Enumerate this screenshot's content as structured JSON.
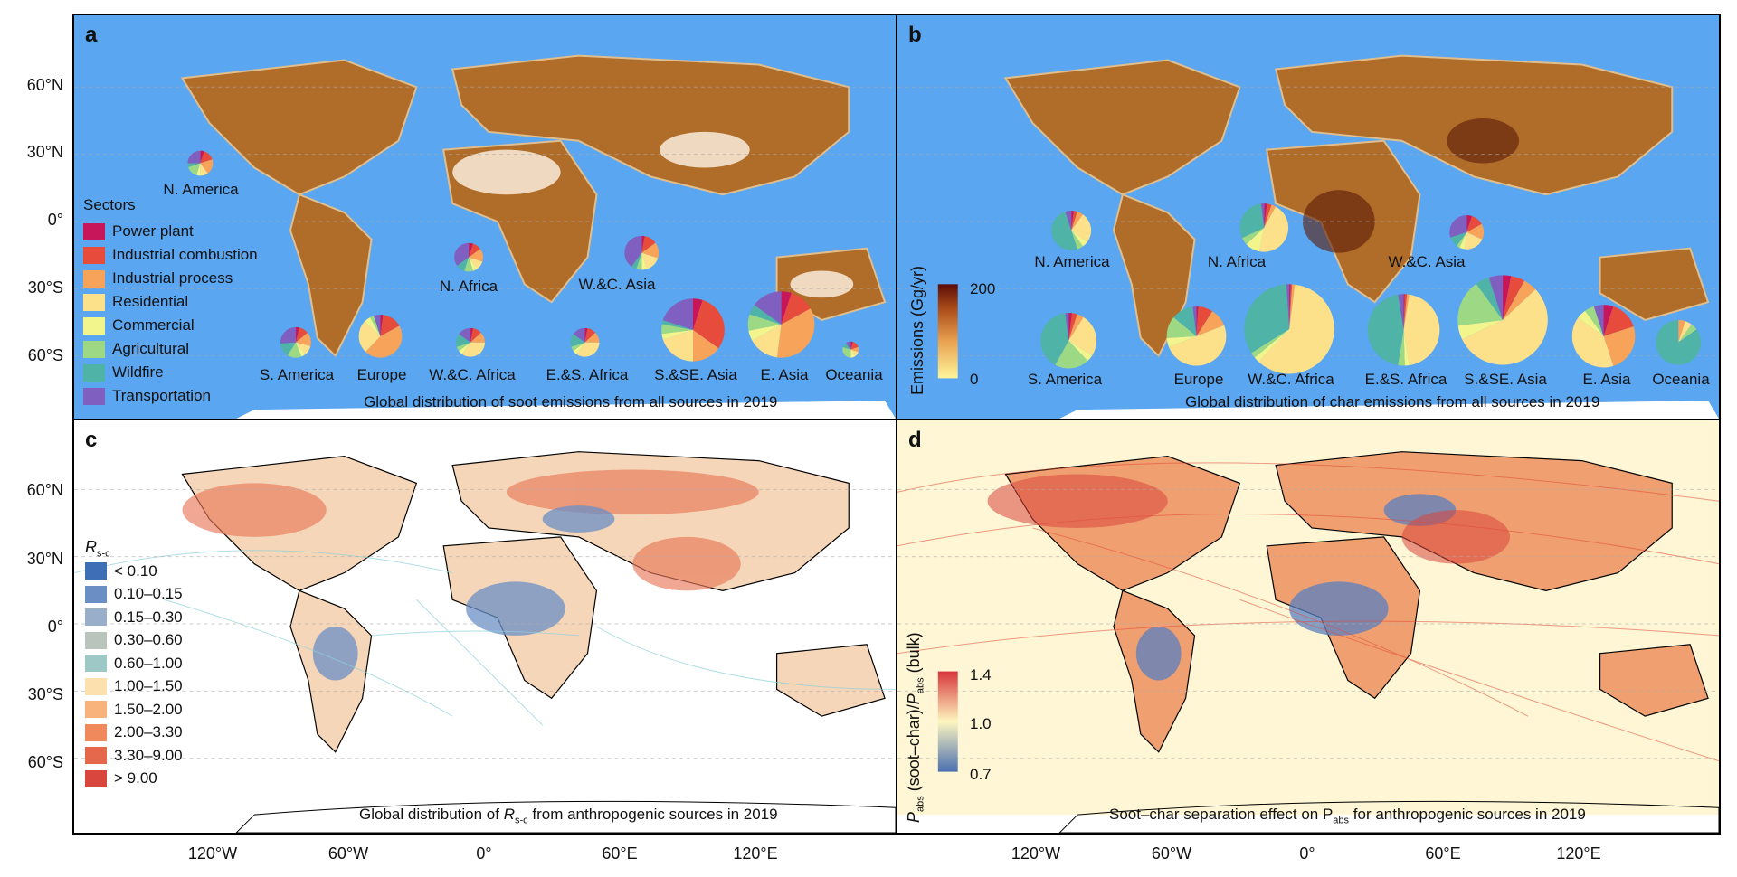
{
  "axes": {
    "lat_top": [
      "60°N",
      "30°N",
      "0°",
      "30°S",
      "60°S"
    ],
    "lat_bottom": [
      "60°N",
      "30°N",
      "0°",
      "30°S",
      "60°S"
    ],
    "lon_left": [
      "120°W",
      "60°W",
      "0°",
      "60°E",
      "120°E"
    ],
    "lon_right": [
      "120°W",
      "60°W",
      "0°",
      "60°E",
      "120°E"
    ]
  },
  "colors": {
    "ocean": "#5aa6f0",
    "sectors": {
      "power": "#c8165a",
      "indcomb": "#e64b3c",
      "indproc": "#f7a35a",
      "resid": "#fde08a",
      "commer": "#f1f58c",
      "agri": "#9dd985",
      "wild": "#4fb3a7",
      "trans": "#7f5fbf"
    },
    "rsc": [
      "#3e6fb6",
      "#6b8fc5",
      "#98aec9",
      "#b9c4bd",
      "#9ec8c6",
      "#fce0ae",
      "#f8b37c",
      "#f08a5c",
      "#e6684c",
      "#d8463d"
    ]
  },
  "panel_a": {
    "label": "a",
    "caption": "Global distribution of soot emissions from all sources in 2019",
    "legend_title": "Sectors",
    "legend": [
      {
        "key": "power",
        "label": "Power plant"
      },
      {
        "key": "indcomb",
        "label": "Industrial combustion"
      },
      {
        "key": "indproc",
        "label": "Industrial process"
      },
      {
        "key": "resid",
        "label": "Residential"
      },
      {
        "key": "commer",
        "label": "Commercial"
      },
      {
        "key": "agri",
        "label": "Agricultural"
      },
      {
        "key": "wild",
        "label": "Wildfire"
      },
      {
        "key": "trans",
        "label": "Transportation"
      }
    ],
    "pie_labels": [
      "N. America",
      "N. Africa",
      "W.&C. Asia",
      "S. America",
      "Europe",
      "W.&C. Africa",
      "E.&S. Africa",
      "S.&SE. Asia",
      "E. Asia",
      "Oceania"
    ]
  },
  "panel_b": {
    "label": "b",
    "caption": "Global distribution of char emissions from all sources in 2019",
    "cbar_title": "Emissions (Gg/yr)",
    "cbar_max": "200",
    "cbar_min": "0",
    "pie_labels": [
      "N. America",
      "N. Africa",
      "W.&C. Asia",
      "S. America",
      "Europe",
      "W.&C. Africa",
      "E.&S. Africa",
      "S.&SE. Asia",
      "E. Asia",
      "Oceania"
    ]
  },
  "panel_c": {
    "label": "c",
    "caption_pre": "Global distribution of ",
    "caption_var": "R",
    "caption_sub": "s-c",
    "caption_post": " from anthropogenic sources in 2019",
    "legend_title": "R",
    "legend_title_sub": "s-c",
    "legend": [
      "< 0.10",
      "0.10–0.15",
      "0.15–0.30",
      "0.30–0.60",
      "0.60–1.00",
      "1.00–1.50",
      "1.50–2.00",
      "2.00–3.30",
      "3.30–9.00",
      "> 9.00"
    ]
  },
  "panel_d": {
    "label": "d",
    "caption": "Soot–char separation effect on P",
    "caption_sub": "abs",
    "caption_post": " for anthropogenic sources in 2019",
    "cbar_title": "P",
    "cbar_title_sub": "abs",
    "cbar_title_mid": " (soot–char)/",
    "cbar_title2": "P",
    "cbar_title2_sub": "abs",
    "cbar_title_post": " (bulk)",
    "cbar_ticks": [
      "1.4",
      "1.0",
      "0.7"
    ]
  },
  "pies_a": [
    {
      "x": 220,
      "y": 180,
      "r": 14,
      "vals": [
        0.05,
        0.15,
        0.2,
        0.1,
        0.05,
        0.15,
        0.05,
        0.25
      ]
    },
    {
      "x": 518,
      "y": 285,
      "r": 16,
      "vals": [
        0.05,
        0.1,
        0.15,
        0.1,
        0.05,
        0.1,
        0.1,
        0.35
      ]
    },
    {
      "x": 710,
      "y": 280,
      "r": 19,
      "vals": [
        0.03,
        0.12,
        0.15,
        0.15,
        0.05,
        0.05,
        0.05,
        0.4
      ]
    },
    {
      "x": 326,
      "y": 380,
      "r": 17,
      "vals": [
        0.04,
        0.1,
        0.15,
        0.1,
        0.05,
        0.15,
        0.15,
        0.26
      ]
    },
    {
      "x": 420,
      "y": 373,
      "r": 24,
      "vals": [
        0.02,
        0.15,
        0.45,
        0.25,
        0.05,
        0.03,
        0.0,
        0.05
      ]
    },
    {
      "x": 520,
      "y": 380,
      "r": 16,
      "vals": [
        0.03,
        0.1,
        0.12,
        0.35,
        0.05,
        0.05,
        0.15,
        0.15
      ]
    },
    {
      "x": 647,
      "y": 380,
      "r": 16,
      "vals": [
        0.03,
        0.1,
        0.12,
        0.35,
        0.05,
        0.05,
        0.15,
        0.15
      ]
    },
    {
      "x": 767,
      "y": 366,
      "r": 35,
      "vals": [
        0.05,
        0.3,
        0.15,
        0.2,
        0.03,
        0.05,
        0.02,
        0.2
      ]
    },
    {
      "x": 865,
      "y": 360,
      "r": 37,
      "vals": [
        0.05,
        0.12,
        0.35,
        0.15,
        0.05,
        0.08,
        0.05,
        0.15
      ]
    },
    {
      "x": 942,
      "y": 388,
      "r": 9,
      "vals": [
        0.05,
        0.15,
        0.1,
        0.1,
        0.1,
        0.3,
        0.1,
        0.1
      ]
    }
  ],
  "pies_b": [
    {
      "x": 1183,
      "y": 255,
      "r": 22,
      "vals": [
        0.02,
        0.03,
        0.05,
        0.25,
        0.05,
        0.05,
        0.5,
        0.05
      ]
    },
    {
      "x": 1397,
      "y": 252,
      "r": 27,
      "vals": [
        0.02,
        0.03,
        0.03,
        0.45,
        0.1,
        0.05,
        0.3,
        0.02
      ]
    },
    {
      "x": 1622,
      "y": 257,
      "r": 19,
      "vals": [
        0.05,
        0.12,
        0.15,
        0.2,
        0.05,
        0.03,
        0.1,
        0.3
      ]
    },
    {
      "x": 1180,
      "y": 378,
      "r": 31,
      "vals": [
        0.02,
        0.03,
        0.04,
        0.25,
        0.04,
        0.2,
        0.4,
        0.02
      ]
    },
    {
      "x": 1322,
      "y": 373,
      "r": 33,
      "vals": [
        0.01,
        0.08,
        0.1,
        0.5,
        0.05,
        0.12,
        0.12,
        0.02
      ]
    },
    {
      "x": 1425,
      "y": 365,
      "r": 50,
      "vals": [
        0.005,
        0.005,
        0.01,
        0.6,
        0.02,
        0.02,
        0.33,
        0.01
      ]
    },
    {
      "x": 1552,
      "y": 366,
      "r": 40,
      "vals": [
        0.005,
        0.01,
        0.01,
        0.45,
        0.02,
        0.03,
        0.45,
        0.025
      ]
    },
    {
      "x": 1662,
      "y": 355,
      "r": 50,
      "vals": [
        0.03,
        0.05,
        0.05,
        0.55,
        0.05,
        0.17,
        0.05,
        0.05
      ]
    },
    {
      "x": 1774,
      "y": 373,
      "r": 35,
      "vals": [
        0.05,
        0.15,
        0.25,
        0.4,
        0.05,
        0.05,
        0.0,
        0.05
      ]
    },
    {
      "x": 1857,
      "y": 380,
      "r": 25,
      "vals": [
        0.0,
        0.0,
        0.05,
        0.05,
        0.0,
        0.05,
        0.85,
        0.0
      ]
    }
  ]
}
